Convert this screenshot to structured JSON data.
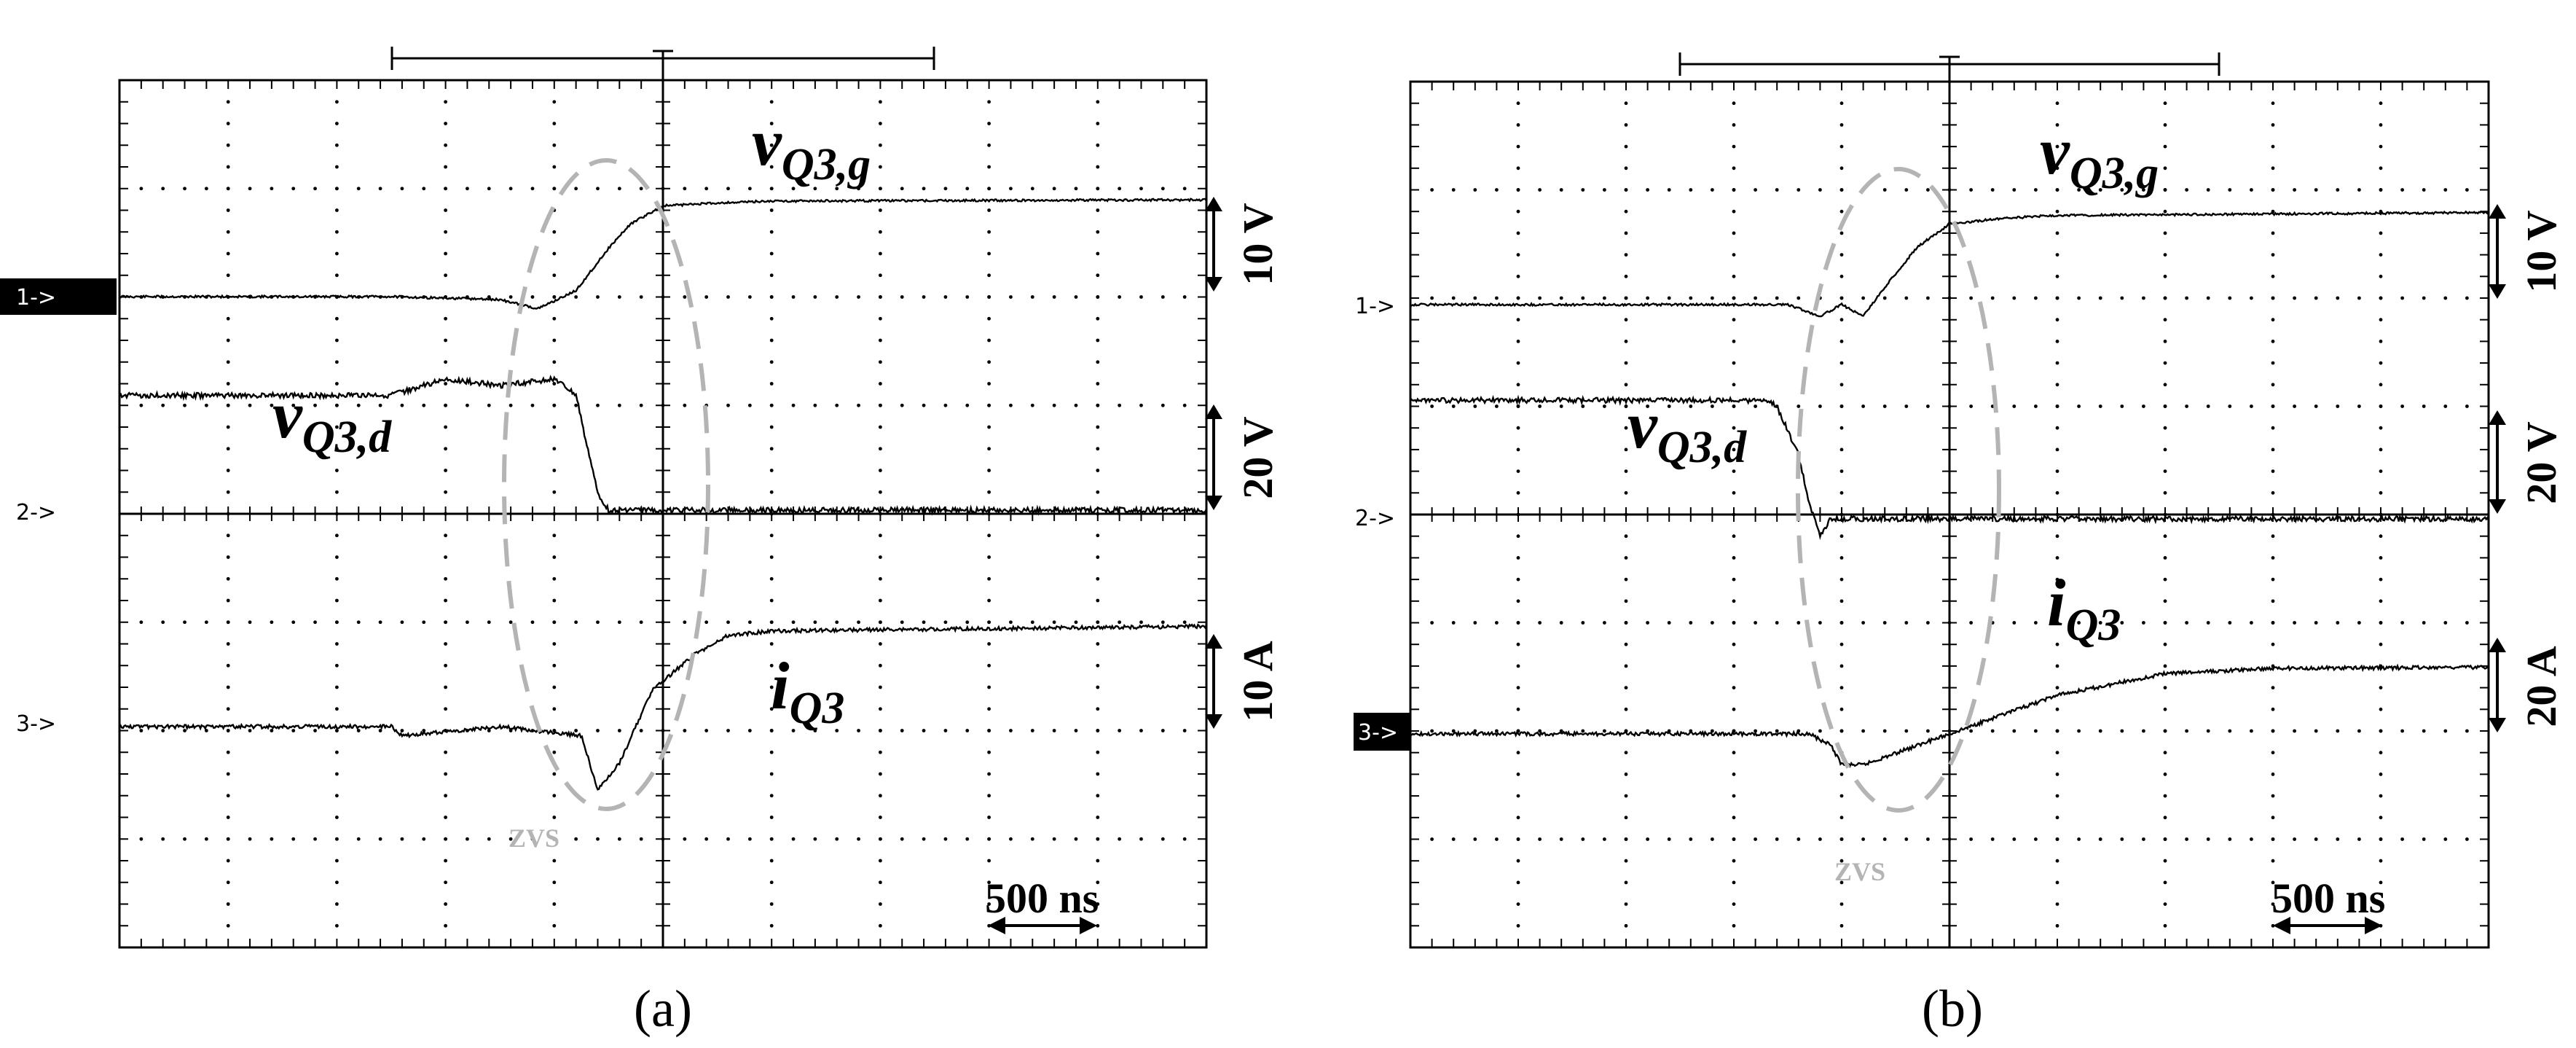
{
  "panels": [
    {
      "id": "a",
      "caption": "(a)",
      "labels": {
        "gate": "Q3,g",
        "drain": "Q3,d",
        "current": "Q3"
      },
      "channels": [
        {
          "marker": "1->",
          "highlight": true,
          "scale": "10 V"
        },
        {
          "marker": "2->",
          "highlight": false,
          "scale": "20 V"
        },
        {
          "marker": "3->",
          "highlight": false,
          "scale": "10 A"
        }
      ],
      "zvs": "ZVS",
      "time_scale": "500 ns"
    },
    {
      "id": "b",
      "caption": "(b)",
      "labels": {
        "gate": "Q3,g",
        "drain": "Q3,d",
        "current": "Q3"
      },
      "channels": [
        {
          "marker": "1->",
          "highlight": false,
          "scale": "10 V"
        },
        {
          "marker": "2->",
          "highlight": false,
          "scale": "20 V"
        },
        {
          "marker": "3->",
          "highlight": true,
          "scale": "20 A"
        }
      ],
      "zvs": "ZVS",
      "time_scale": "500 ns"
    }
  ],
  "chart_data": [
    {
      "type": "line",
      "title": "",
      "xlabel": "",
      "ylabel": "",
      "x_unit": "division (500 ns/div)",
      "xlim": [
        -5,
        5
      ],
      "grid": true,
      "series": [
        {
          "name": "vQ3,g",
          "channel": 1,
          "unit": "V",
          "x": [
            -5,
            -2.5,
            -1.5,
            -1.15,
            -0.8,
            -0.5,
            -0.3,
            0,
            0.5,
            1,
            5
          ],
          "y": [
            0,
            0,
            -0.5,
            -2,
            1,
            8,
            12,
            15,
            15.5,
            15.8,
            16
          ]
        },
        {
          "name": "vQ3,d",
          "channel": 2,
          "unit": "V",
          "x": [
            -5,
            -2.5,
            -2,
            -1.5,
            -1,
            -0.8,
            -0.7,
            -0.6,
            -0.5,
            0,
            5
          ],
          "y": [
            35,
            35,
            40,
            38,
            40,
            35,
            20,
            5,
            0,
            0,
            0
          ]
        },
        {
          "name": "iQ3",
          "channel": 3,
          "unit": "A",
          "x": [
            -5,
            -2.5,
            -2.4,
            -1.5,
            -0.75,
            -0.6,
            -0.4,
            -0.1,
            0,
            0.3,
            0.6,
            1,
            5
          ],
          "y": [
            0,
            0,
            -1,
            0,
            -1,
            -7,
            -4,
            4,
            5,
            8,
            10,
            10.5,
            11
          ]
        }
      ]
    },
    {
      "type": "line",
      "title": "",
      "xlabel": "",
      "ylabel": "",
      "x_unit": "division (500 ns/div)",
      "xlim": [
        -5,
        5
      ],
      "grid": true,
      "series": [
        {
          "name": "vQ3,g",
          "channel": 1,
          "unit": "V",
          "x": [
            -5,
            -1.5,
            -1.2,
            -1.0,
            -0.8,
            -0.6,
            -0.3,
            0,
            0.5,
            1,
            5
          ],
          "y": [
            0,
            0,
            -2,
            0,
            -2,
            3,
            10,
            14,
            15,
            15.5,
            16
          ]
        },
        {
          "name": "vQ3,d",
          "channel": 2,
          "unit": "V",
          "x": [
            -5,
            -1.7,
            -1.6,
            -1.4,
            -1.3,
            -1.2,
            -1.1,
            -0.9,
            0,
            5
          ],
          "y": [
            37,
            37,
            35,
            20,
            5,
            -5,
            0,
            0,
            0,
            0
          ]
        },
        {
          "name": "iQ3",
          "channel": 3,
          "unit": "A",
          "x": [
            -5,
            -1.3,
            -1.1,
            -1.0,
            -0.8,
            -0.6,
            0,
            0.4,
            1,
            2,
            3,
            5
          ],
          "y": [
            0,
            0,
            -1.5,
            -4,
            -4,
            -3,
            0,
            2,
            5,
            7.8,
            8.5,
            8.6
          ]
        }
      ]
    }
  ]
}
